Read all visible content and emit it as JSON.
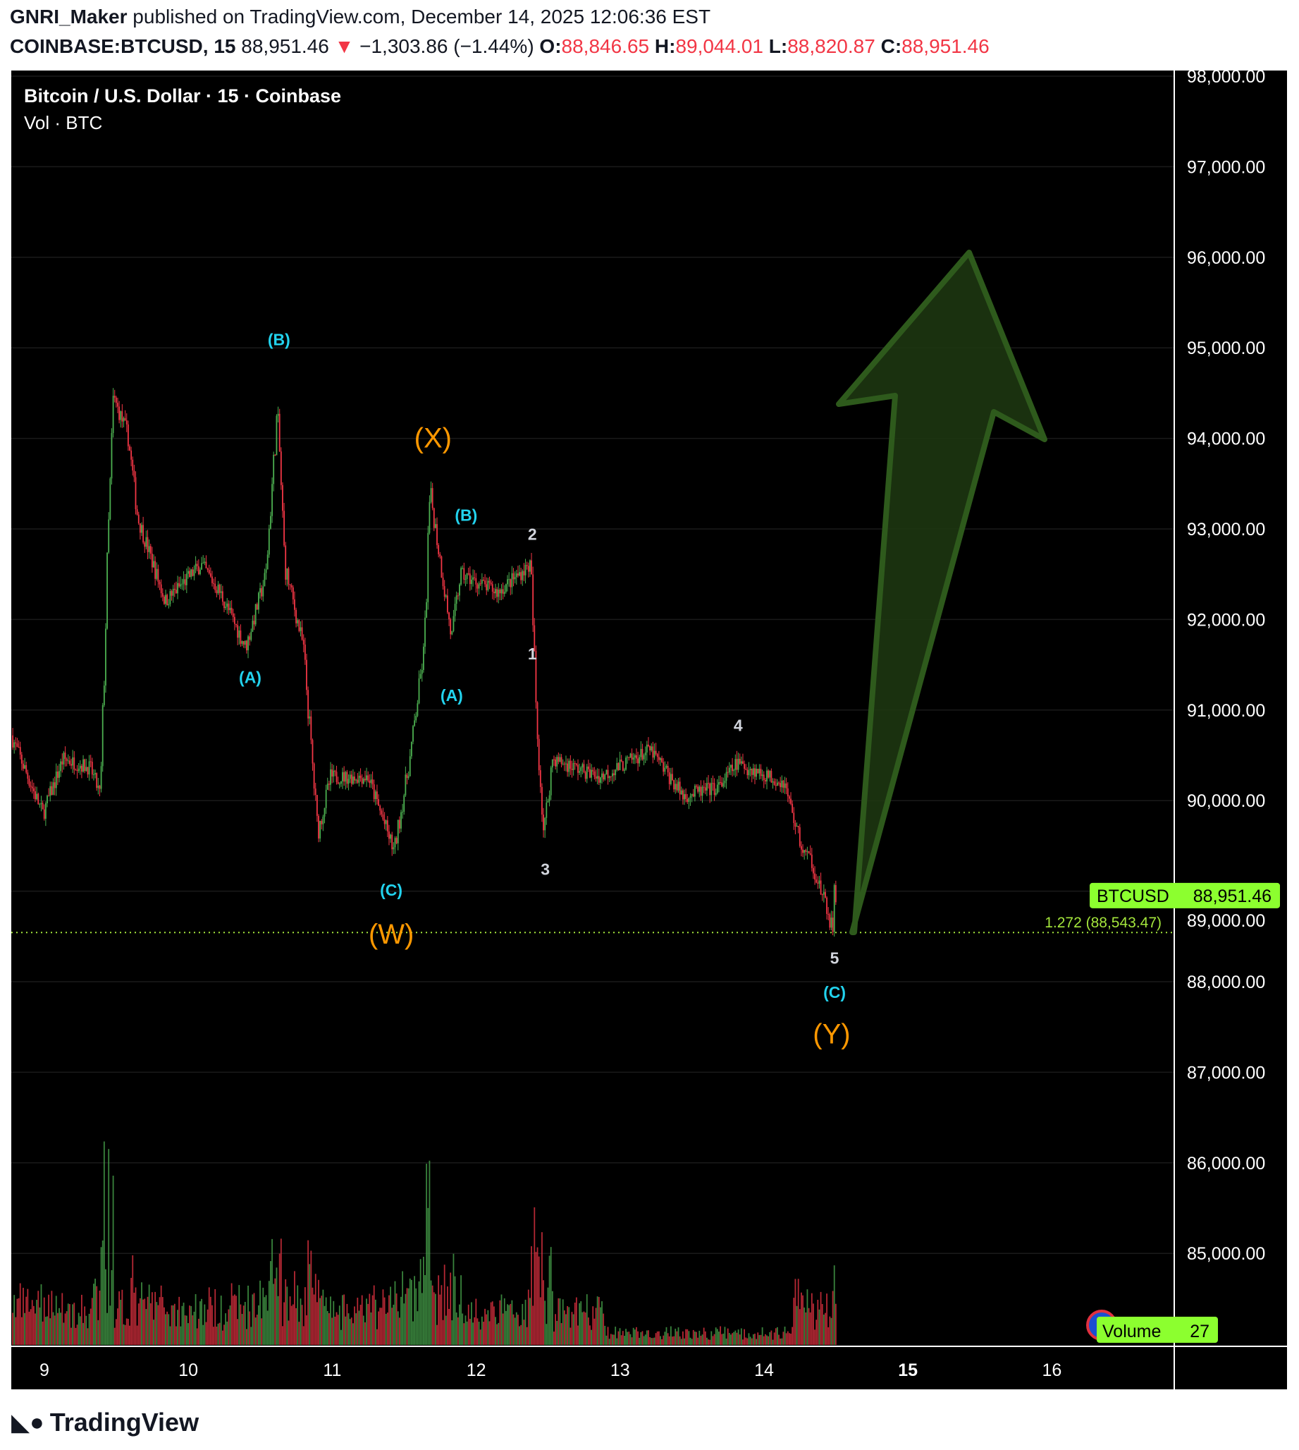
{
  "header": {
    "author": "GNRI_Maker",
    "published": "published on TradingView.com, December 14, 2025 12:06:36 EST",
    "symbol": "COINBASE:BTCUSD, 15",
    "last": "88,951.46",
    "change_arrow": "▼",
    "change": "−1,303.86 (−1.44%)",
    "o_label": "O:",
    "o": "88,846.65",
    "h_label": "H:",
    "h": "89,044.01",
    "l_label": "L:",
    "l": "88,820.87",
    "c_label": "C:",
    "c": "88,951.46"
  },
  "legend": {
    "title": "Bitcoin / U.S. Dollar · 15 · Coinbase",
    "volume": "Vol · BTC"
  },
  "chart_data": {
    "type": "candlestick",
    "ylim": [
      84000,
      98000
    ],
    "y_ticks": [
      "98,000.00",
      "97,000.00",
      "96,000.00",
      "95,000.00",
      "94,000.00",
      "93,000.00",
      "92,000.00",
      "91,000.00",
      "90,000.00",
      "89,000.00",
      "88,000.00",
      "87,000.00",
      "86,000.00",
      "85,000.00"
    ],
    "y_tick_values": [
      98000,
      97000,
      96000,
      95000,
      94000,
      93000,
      92000,
      91000,
      90000,
      89000,
      88000,
      87000,
      86000,
      85000
    ],
    "x_ticks": [
      "9",
      "10",
      "11",
      "12",
      "13",
      "14",
      "15",
      "16"
    ],
    "x_tick_values": [
      9,
      10,
      11,
      12,
      13,
      14,
      15,
      16
    ],
    "price_path": [
      [
        8.78,
        90720
      ],
      [
        9.0,
        89850
      ],
      [
        9.14,
        90460
      ],
      [
        9.33,
        90360
      ],
      [
        9.4,
        90050
      ],
      [
        9.45,
        92710
      ],
      [
        9.49,
        94450
      ],
      [
        9.59,
        94040
      ],
      [
        9.66,
        93120
      ],
      [
        9.85,
        92200
      ],
      [
        10.1,
        92610
      ],
      [
        10.23,
        92300
      ],
      [
        10.41,
        91690
      ],
      [
        10.55,
        92500
      ],
      [
        10.63,
        94340
      ],
      [
        10.68,
        92610
      ],
      [
        10.81,
        91690
      ],
      [
        10.91,
        89640
      ],
      [
        11.0,
        90260
      ],
      [
        11.26,
        90260
      ],
      [
        11.44,
        89440
      ],
      [
        11.55,
        90460
      ],
      [
        11.65,
        91690
      ],
      [
        11.69,
        93420
      ],
      [
        11.84,
        91790
      ],
      [
        11.9,
        92500
      ],
      [
        12.16,
        92300
      ],
      [
        12.39,
        92610
      ],
      [
        12.43,
        90870
      ],
      [
        12.48,
        89640
      ],
      [
        12.54,
        90460
      ],
      [
        12.87,
        90260
      ],
      [
        13.22,
        90560
      ],
      [
        13.45,
        90050
      ],
      [
        13.7,
        90150
      ],
      [
        13.82,
        90410
      ],
      [
        14.15,
        90200
      ],
      [
        14.28,
        89440
      ],
      [
        14.34,
        89340
      ],
      [
        14.4,
        89030
      ],
      [
        14.49,
        88570
      ],
      [
        14.5,
        88951
      ]
    ],
    "up_color": "#4caf50",
    "down_color": "#f23645",
    "last_price": {
      "symbol": "BTCUSD",
      "value": "88,951.46",
      "color": "#8cff2f"
    },
    "fib_line": {
      "label": "1.272 (88,543.47)",
      "value": 88543.47,
      "color": "#a4e63c"
    },
    "volume_badge": {
      "label": "Volume",
      "value": "27"
    },
    "wave_labels": [
      {
        "text": "(B)",
        "day": 10.63,
        "price": 95030,
        "color": "#22d3ee"
      },
      {
        "text": "(A)",
        "day": 10.43,
        "price": 91300,
        "color": "#22d3ee"
      },
      {
        "text": "(C)",
        "day": 11.41,
        "price": 88950,
        "color": "#22d3ee"
      },
      {
        "text": "(W)",
        "day": 11.41,
        "price": 88420,
        "color": "#ff9800"
      },
      {
        "text": "(X)",
        "day": 11.7,
        "price": 93900,
        "color": "#ff9800"
      },
      {
        "text": "(B)",
        "day": 11.93,
        "price": 93090,
        "color": "#22d3ee"
      },
      {
        "text": "(A)",
        "day": 11.83,
        "price": 91100,
        "color": "#22d3ee"
      },
      {
        "text": "2",
        "day": 12.39,
        "price": 92880,
        "color": "#d1d4dc"
      },
      {
        "text": "1",
        "day": 12.39,
        "price": 91560,
        "color": "#d1d4dc"
      },
      {
        "text": "3",
        "day": 12.48,
        "price": 89180,
        "color": "#d1d4dc"
      },
      {
        "text": "4",
        "day": 13.82,
        "price": 90770,
        "color": "#d1d4dc"
      },
      {
        "text": "5",
        "day": 14.49,
        "price": 88200,
        "color": "#d1d4dc"
      },
      {
        "text": "(C)",
        "day": 14.49,
        "price": 87820,
        "color": "#22d3ee"
      },
      {
        "text": "(Y)",
        "day": 14.47,
        "price": 87320,
        "color": "#ff9800"
      }
    ],
    "arrow": {
      "direction": "up",
      "color": "#2e5a1c"
    }
  },
  "brand": "TradingView"
}
